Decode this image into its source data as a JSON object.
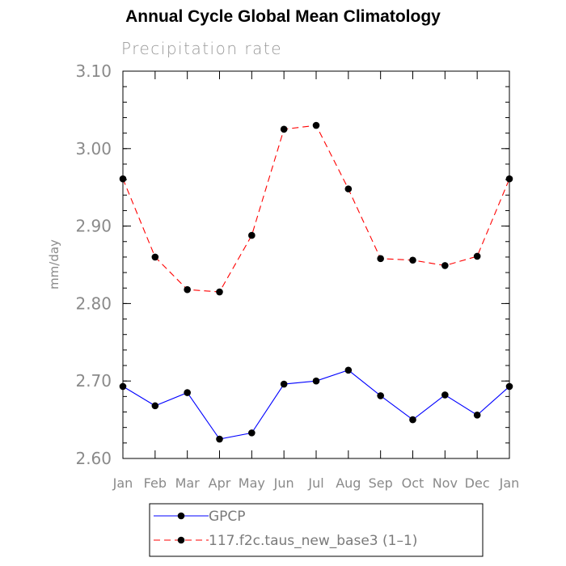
{
  "chart_data": {
    "type": "line",
    "title": "Annual Cycle Global Mean Climatology",
    "subtitle": "Precipitation rate",
    "xlabel": "",
    "ylabel": "mm/day",
    "categories": [
      "Jan",
      "Feb",
      "Mar",
      "Apr",
      "May",
      "Jun",
      "Jul",
      "Aug",
      "Sep",
      "Oct",
      "Nov",
      "Dec",
      "Jan"
    ],
    "ylim": [
      2.6,
      3.1
    ],
    "yticks": [
      "2.60",
      "2.70",
      "2.80",
      "2.90",
      "3.00",
      "3.10"
    ],
    "series": [
      {
        "name": "GPCP",
        "color": "#0000ff",
        "line_style": "solid",
        "values": [
          2.693,
          2.668,
          2.685,
          2.625,
          2.633,
          2.696,
          2.7,
          2.714,
          2.681,
          2.65,
          2.682,
          2.656,
          2.693
        ]
      },
      {
        "name": "117.f2c.taus_new_base3 (1–1)",
        "color": "#ff0000",
        "line_style": "dashed",
        "values": [
          2.961,
          2.86,
          2.818,
          2.815,
          2.888,
          3.025,
          3.03,
          2.948,
          2.858,
          2.856,
          2.849,
          2.861,
          2.961
        ]
      }
    ],
    "legend_position": "bottom"
  }
}
